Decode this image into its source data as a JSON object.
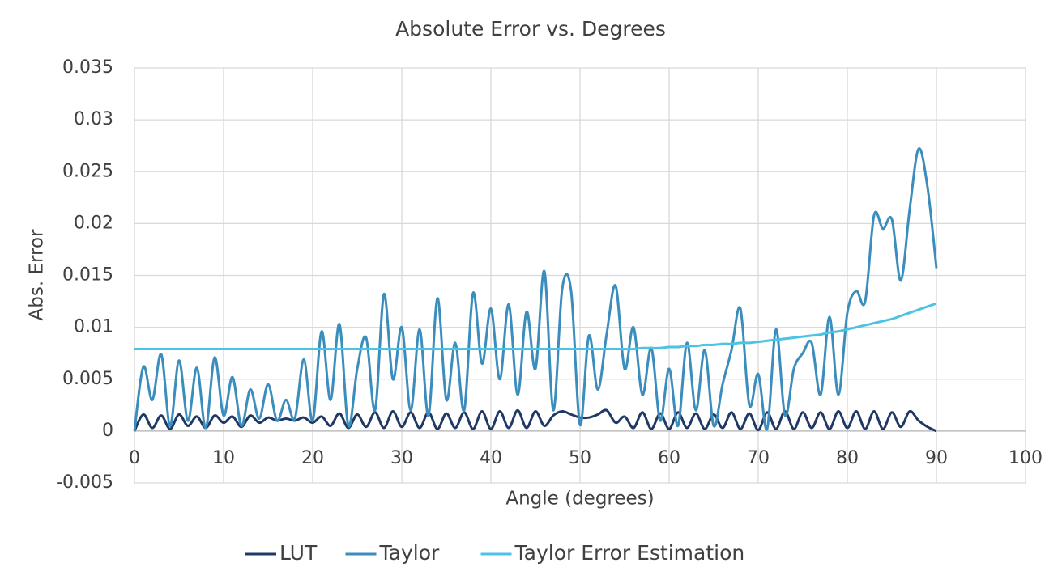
{
  "chart_data": {
    "type": "line",
    "title": "Absolute Error vs. Degrees",
    "x_label": "Angle (degrees)",
    "y_label": "Abs. Error",
    "x": [
      0,
      1,
      2,
      3,
      4,
      5,
      6,
      7,
      8,
      9,
      10,
      11,
      12,
      13,
      14,
      15,
      16,
      17,
      18,
      19,
      20,
      21,
      22,
      23,
      24,
      25,
      26,
      27,
      28,
      29,
      30,
      31,
      32,
      33,
      34,
      35,
      36,
      37,
      38,
      39,
      40,
      41,
      42,
      43,
      44,
      45,
      46,
      47,
      48,
      49,
      50,
      51,
      52,
      53,
      54,
      55,
      56,
      57,
      58,
      59,
      60,
      61,
      62,
      63,
      64,
      65,
      66,
      67,
      68,
      69,
      70,
      71,
      72,
      73,
      74,
      75,
      76,
      77,
      78,
      79,
      80,
      81,
      82,
      83,
      84,
      85,
      86,
      87,
      88,
      89,
      90
    ],
    "series": [
      {
        "name": "LUT",
        "color": "#1f3864",
        "values": [
          0,
          0.0016,
          0.0003,
          0.0015,
          0.0002,
          0.0016,
          0.0005,
          0.0014,
          0.0003,
          0.0015,
          0.0008,
          0.0014,
          0.0004,
          0.0015,
          0.0008,
          0.0013,
          0.001,
          0.0012,
          0.001,
          0.0013,
          0.0008,
          0.0014,
          0.0005,
          0.0017,
          0.0003,
          0.0016,
          0.0004,
          0.0018,
          0.0003,
          0.0019,
          0.0004,
          0.0018,
          0.0003,
          0.0018,
          0.0002,
          0.0017,
          0.0003,
          0.0018,
          0.0002,
          0.0019,
          0.0002,
          0.0019,
          0.0003,
          0.002,
          0.0003,
          0.0019,
          0.0005,
          0.0015,
          0.0019,
          0.0016,
          0.0013,
          0.0013,
          0.0016,
          0.002,
          0.0008,
          0.0014,
          0.0003,
          0.0018,
          0.0002,
          0.0017,
          0.0002,
          0.0018,
          0.0003,
          0.0017,
          0.0002,
          0.0016,
          0.0003,
          0.0018,
          0.0002,
          0.0017,
          0.0001,
          0.0018,
          0.0002,
          0.0019,
          0.0002,
          0.0018,
          0.0003,
          0.0018,
          0.0002,
          0.0019,
          0.0003,
          0.0019,
          0.0002,
          0.0019,
          0.0002,
          0.0018,
          0.0004,
          0.0019,
          0.001,
          0.0004,
          0
        ]
      },
      {
        "name": "Taylor",
        "color": "#3b8dbd",
        "values": [
          0,
          0.0062,
          0.003,
          0.0074,
          0.0005,
          0.0068,
          0.001,
          0.0061,
          0.0003,
          0.0071,
          0.0015,
          0.0052,
          0.0005,
          0.004,
          0.0012,
          0.0045,
          0.001,
          0.003,
          0.0012,
          0.0069,
          0.001,
          0.0096,
          0.003,
          0.0103,
          0.0005,
          0.006,
          0.009,
          0.002,
          0.0132,
          0.005,
          0.01,
          0.002,
          0.0098,
          0.0015,
          0.0128,
          0.003,
          0.0085,
          0.002,
          0.0133,
          0.0065,
          0.0118,
          0.005,
          0.0122,
          0.0035,
          0.0115,
          0.006,
          0.0154,
          0.002,
          0.0137,
          0.0135,
          0.0006,
          0.0092,
          0.004,
          0.0094,
          0.014,
          0.006,
          0.01,
          0.0035,
          0.008,
          0.001,
          0.006,
          0.0005,
          0.0085,
          0.002,
          0.0078,
          0.0005,
          0.0045,
          0.0078,
          0.0118,
          0.0025,
          0.0055,
          0.0002,
          0.0098,
          0.0015,
          0.006,
          0.0075,
          0.0085,
          0.0035,
          0.011,
          0.0035,
          0.0114,
          0.0135,
          0.0125,
          0.0208,
          0.0195,
          0.0204,
          0.0145,
          0.0214,
          0.0272,
          0.0235,
          0.0157
        ]
      },
      {
        "name": "Taylor Error Estimation",
        "color": "#4cc3e3",
        "values": [
          0.0079,
          0.0079,
          0.0079,
          0.0079,
          0.0079,
          0.0079,
          0.0079,
          0.0079,
          0.0079,
          0.0079,
          0.0079,
          0.0079,
          0.0079,
          0.0079,
          0.0079,
          0.0079,
          0.0079,
          0.0079,
          0.0079,
          0.0079,
          0.0079,
          0.0079,
          0.0079,
          0.0079,
          0.0079,
          0.0079,
          0.0079,
          0.0079,
          0.0079,
          0.0079,
          0.0079,
          0.0079,
          0.0079,
          0.0079,
          0.0079,
          0.0079,
          0.0079,
          0.0079,
          0.0079,
          0.0079,
          0.0079,
          0.0079,
          0.0079,
          0.0079,
          0.0079,
          0.0079,
          0.0079,
          0.0079,
          0.0079,
          0.0079,
          0.0079,
          0.0079,
          0.0079,
          0.0079,
          0.0079,
          0.0079,
          0.0079,
          0.008,
          0.008,
          0.008,
          0.0081,
          0.0081,
          0.0082,
          0.0082,
          0.0083,
          0.0083,
          0.0084,
          0.0084,
          0.0085,
          0.0085,
          0.0086,
          0.0087,
          0.0088,
          0.0089,
          0.009,
          0.0091,
          0.0092,
          0.0093,
          0.0095,
          0.0096,
          0.0098,
          0.01,
          0.0102,
          0.0104,
          0.0106,
          0.0108,
          0.0111,
          0.0114,
          0.0117,
          0.012,
          0.0123
        ]
      }
    ],
    "xlim": [
      0,
      100
    ],
    "xticks": [
      0,
      10,
      20,
      30,
      40,
      50,
      60,
      70,
      80,
      90,
      100
    ],
    "ylim": [
      -0.005,
      0.035
    ],
    "yticks": [
      -0.005,
      0,
      0.005,
      0.01,
      0.015,
      0.02,
      0.025,
      0.03,
      0.035
    ],
    "grid": true,
    "legend": "bottom"
  }
}
